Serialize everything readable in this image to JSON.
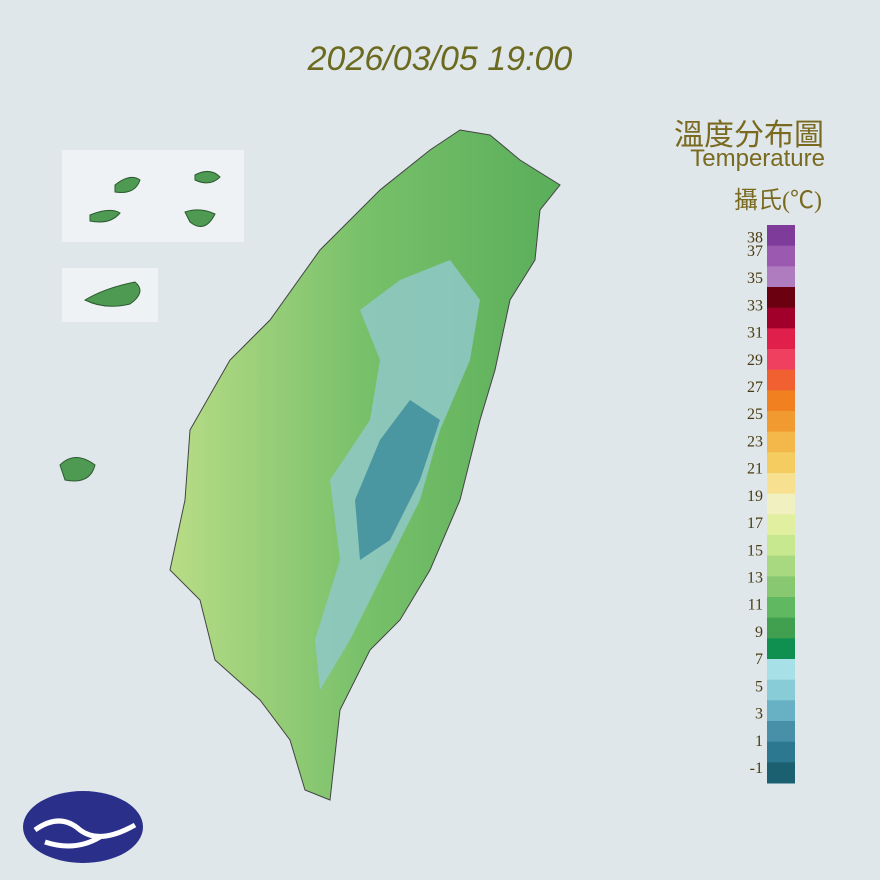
{
  "header": {
    "timestamp": "2026/03/05 19:00"
  },
  "legend": {
    "title": "溫度分布圖",
    "subtitle": "Temperature",
    "unit": "攝氏(℃)",
    "labels": [
      38,
      37,
      35,
      33,
      31,
      29,
      27,
      25,
      23,
      21,
      19,
      17,
      15,
      13,
      11,
      9,
      7,
      5,
      3,
      1,
      -1
    ],
    "colors": [
      "#7e3b9a",
      "#9b5ab0",
      "#b07cc0",
      "#6b0010",
      "#a0002a",
      "#e0204a",
      "#f04060",
      "#f06030",
      "#f08020",
      "#f09a30",
      "#f4b84a",
      "#f5cc60",
      "#f7e090",
      "#f0f0c0",
      "#e0f0a0",
      "#c8e890",
      "#a8d880",
      "#88c870",
      "#60b860",
      "#40a050",
      "#109050",
      "#a8e0e8",
      "#88ccd8",
      "#68b0c4",
      "#4890a8",
      "#2c7890",
      "#1a6070"
    ]
  }
}
